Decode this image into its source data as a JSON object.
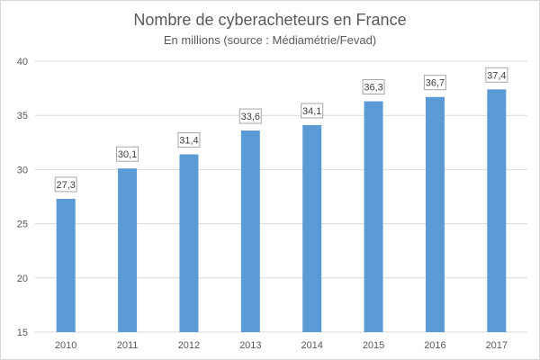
{
  "chart_data": {
    "type": "bar",
    "title": "Nombre de cyberacheteurs en France",
    "subtitle": "En millions (source : Médiamétrie/Fevad)",
    "xlabel": "",
    "ylabel": "",
    "categories": [
      "2010",
      "2011",
      "2012",
      "2013",
      "2014",
      "2015",
      "2016",
      "2017"
    ],
    "values": [
      27.3,
      30.1,
      31.4,
      33.6,
      34.1,
      36.3,
      36.7,
      37.4
    ],
    "data_labels": [
      "27,3",
      "30,1",
      "31,4",
      "33,6",
      "34,1",
      "36,3",
      "36,7",
      "37,4"
    ],
    "ylim": [
      15,
      40
    ],
    "y_ticks": [
      "15",
      "20",
      "25",
      "30",
      "35",
      "40"
    ],
    "grid": true,
    "legend": "none",
    "colors": {
      "bar": "#5b9bd5",
      "grid": "#d9d9d9",
      "text": "#595959",
      "label_border": "#a6a6a6"
    }
  }
}
